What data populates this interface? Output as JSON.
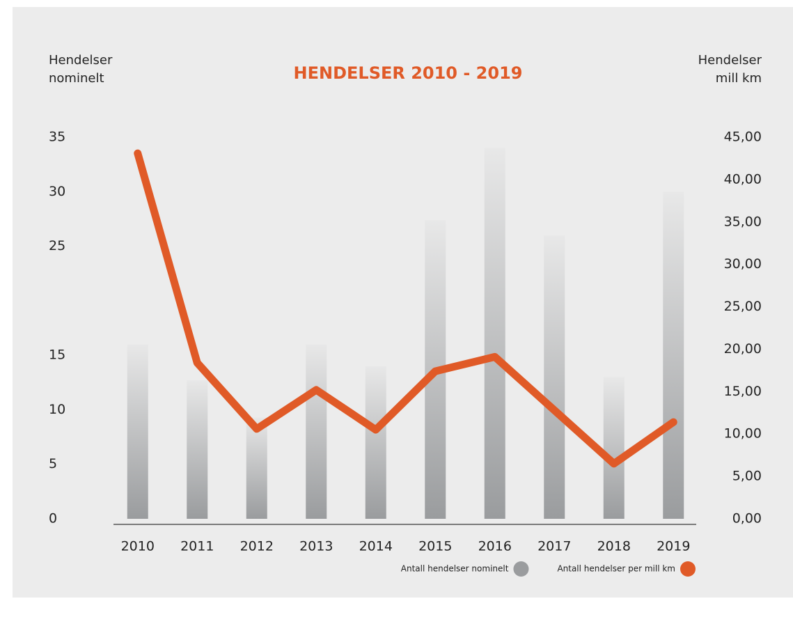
{
  "chart_data": {
    "type": "bar_line",
    "title": "HENDELSER 2010 - 2019",
    "y_label": [
      "Hendelser",
      "nominelt"
    ],
    "y2_label": [
      "Hendelser",
      "mill km"
    ],
    "categories": [
      "2010",
      "2011",
      "2012",
      "2013",
      "2014",
      "2015",
      "2016",
      "2017",
      "2018",
      "2019"
    ],
    "series": [
      {
        "name": "Antall hendelser nominelt",
        "type": "bar",
        "color": "#9a9c9e",
        "values": [
          16,
          12.7,
          9.3,
          16,
          14,
          27.4,
          34,
          26,
          13,
          30
        ]
      },
      {
        "name": "Antall hendelser per mill km",
        "type": "line",
        "axis": "y2",
        "color": "#e05a27",
        "values": [
          43.1,
          18.4,
          10.6,
          15.2,
          10.5,
          17.4,
          19.1,
          12.8,
          6.5,
          11.4
        ]
      }
    ],
    "ylim": [
      0,
      35
    ],
    "yticks": [
      0,
      5,
      10,
      15,
      25,
      30,
      35
    ],
    "y2lim": [
      0,
      45
    ],
    "y2ticks": [
      {
        "value": 0,
        "label": "0,00"
      },
      {
        "value": 5,
        "label": "5,00"
      },
      {
        "value": 10,
        "label": "10,00"
      },
      {
        "value": 15,
        "label": "15,00"
      },
      {
        "value": 20,
        "label": "20,00"
      },
      {
        "value": 25,
        "label": "25,00"
      },
      {
        "value": 30,
        "label": "30,00"
      },
      {
        "value": 35,
        "label": "35,00"
      },
      {
        "value": 40,
        "label": "40,00"
      },
      {
        "value": 45,
        "label": "45,00"
      }
    ],
    "legend": "bottom-right"
  }
}
